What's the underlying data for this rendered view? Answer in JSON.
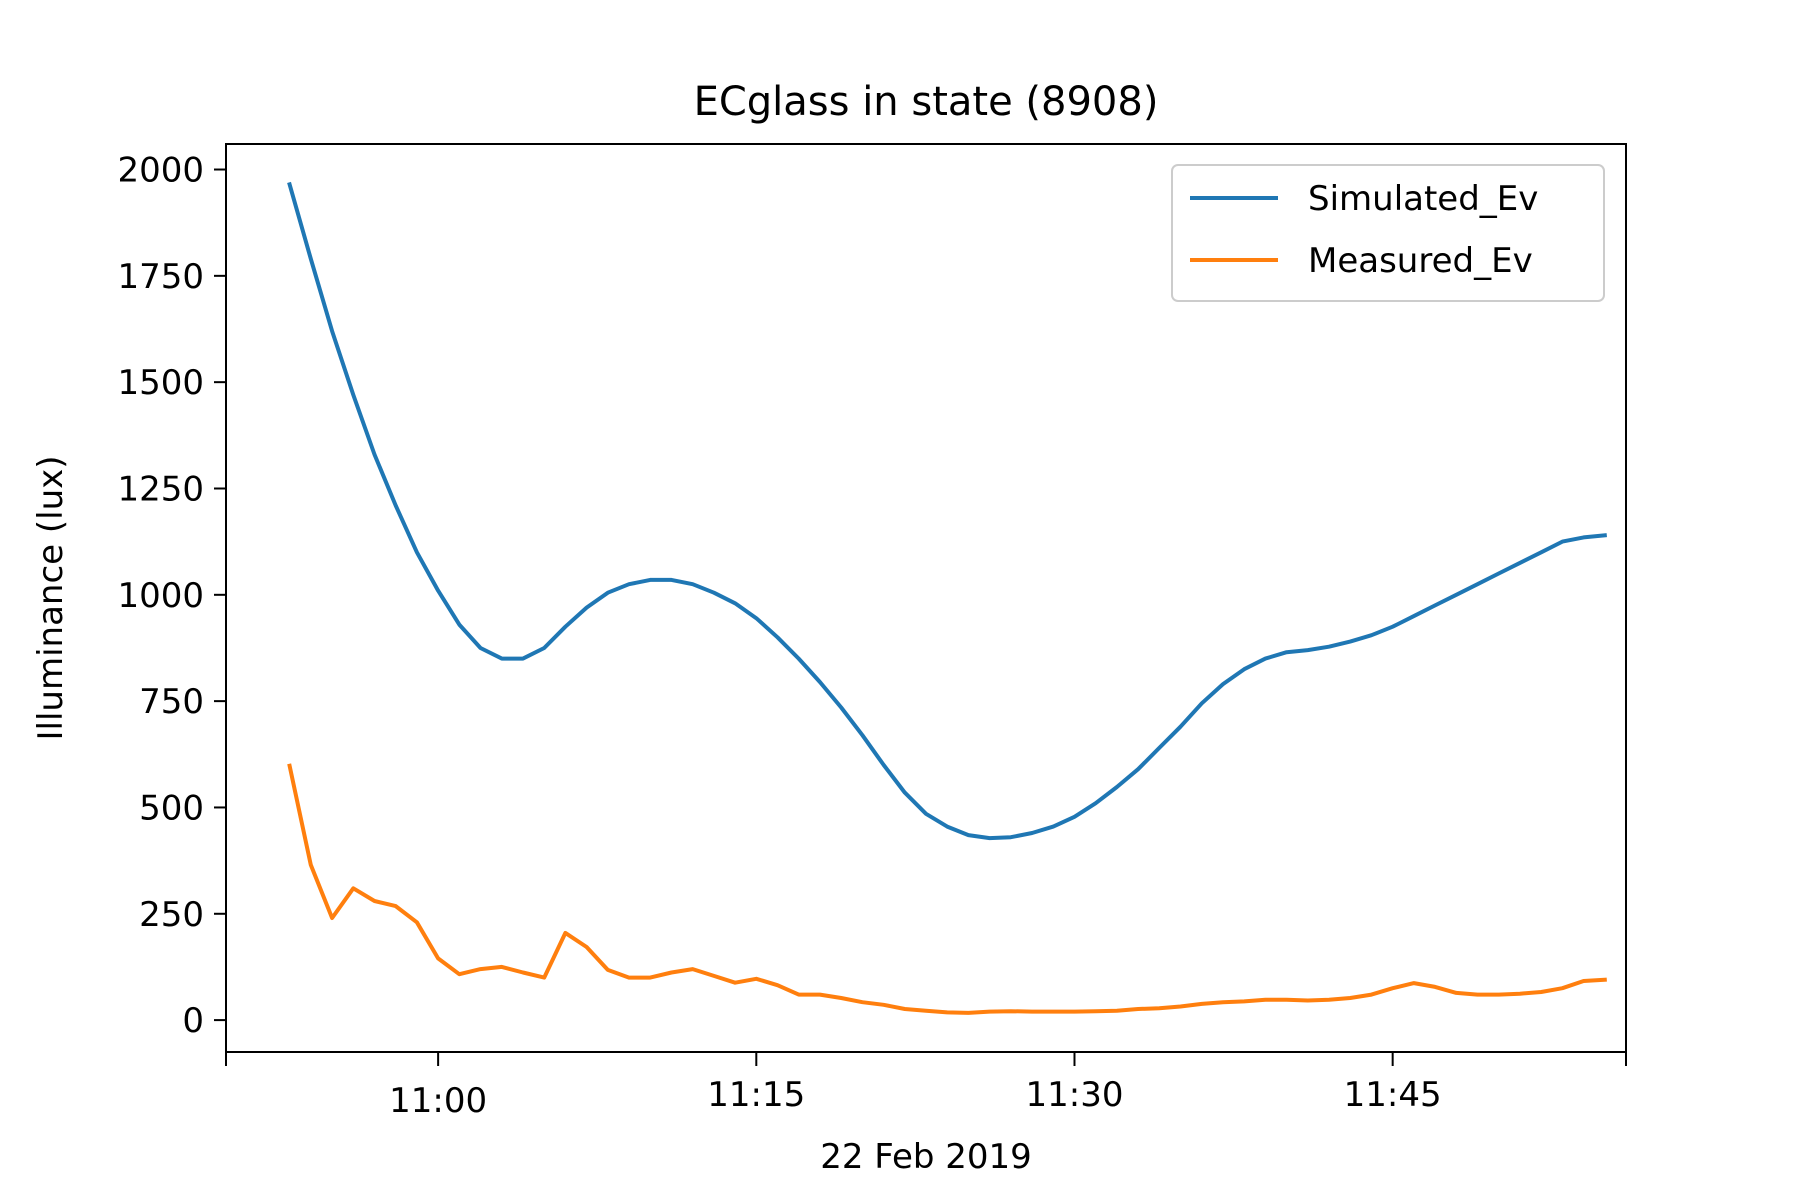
{
  "chart_data": {
    "type": "line",
    "title": "ECglass in state (8908)",
    "xlabel": "22 Feb 2019",
    "ylabel": "Illuminance (lux)",
    "x_unit": "minutes",
    "xlim": [
      "10:50",
      "11:56"
    ],
    "ylim": [
      -75,
      2060
    ],
    "x_ticks": [
      "11:00",
      "11:15",
      "11:30",
      "11:45"
    ],
    "y_ticks": [
      0,
      250,
      500,
      750,
      1000,
      1250,
      1500,
      1750,
      2000
    ],
    "legend_position": "upper-right",
    "grid": false,
    "x": [
      "10:53",
      "10:54",
      "10:55",
      "10:56",
      "10:57",
      "10:58",
      "10:59",
      "11:00",
      "11:01",
      "11:02",
      "11:03",
      "11:04",
      "11:05",
      "11:06",
      "11:07",
      "11:08",
      "11:09",
      "11:10",
      "11:11",
      "11:12",
      "11:13",
      "11:14",
      "11:15",
      "11:16",
      "11:17",
      "11:18",
      "11:19",
      "11:20",
      "11:21",
      "11:22",
      "11:23",
      "11:24",
      "11:25",
      "11:26",
      "11:27",
      "11:28",
      "11:29",
      "11:30",
      "11:31",
      "11:32",
      "11:33",
      "11:34",
      "11:35",
      "11:36",
      "11:37",
      "11:38",
      "11:39",
      "11:40",
      "11:41",
      "11:42",
      "11:43",
      "11:44",
      "11:45",
      "11:46",
      "11:47",
      "11:48",
      "11:49",
      "11:50",
      "11:51",
      "11:52",
      "11:53",
      "11:54",
      "11:55"
    ],
    "series": [
      {
        "name": "Simulated_Ev",
        "color": "#1f77b4",
        "values": [
          1965,
          1790,
          1620,
          1470,
          1330,
          1210,
          1100,
          1010,
          930,
          875,
          850,
          850,
          875,
          925,
          970,
          1005,
          1025,
          1035,
          1035,
          1025,
          1005,
          980,
          945,
          900,
          850,
          795,
          735,
          670,
          600,
          535,
          485,
          455,
          435,
          428,
          430,
          440,
          455,
          478,
          510,
          548,
          590,
          640,
          690,
          745,
          790,
          825,
          850,
          865,
          870,
          878,
          890,
          905,
          925,
          950,
          975,
          1000,
          1025,
          1050,
          1075,
          1100,
          1125,
          1135,
          1140
        ]
      },
      {
        "name": "Measured_Ev",
        "color": "#ff7f0e",
        "values": [
          598,
          365,
          240,
          310,
          280,
          268,
          230,
          145,
          108,
          120,
          125,
          112,
          100,
          205,
          172,
          118,
          100,
          100,
          112,
          120,
          104,
          88,
          97,
          82,
          60,
          60,
          52,
          42,
          36,
          26,
          22,
          18,
          17,
          20,
          21,
          20,
          20,
          20,
          21,
          22,
          26,
          28,
          32,
          38,
          42,
          44,
          48,
          48,
          46,
          48,
          52,
          60,
          75,
          87,
          78,
          64,
          60,
          60,
          62,
          66,
          75,
          92,
          95
        ]
      }
    ]
  }
}
